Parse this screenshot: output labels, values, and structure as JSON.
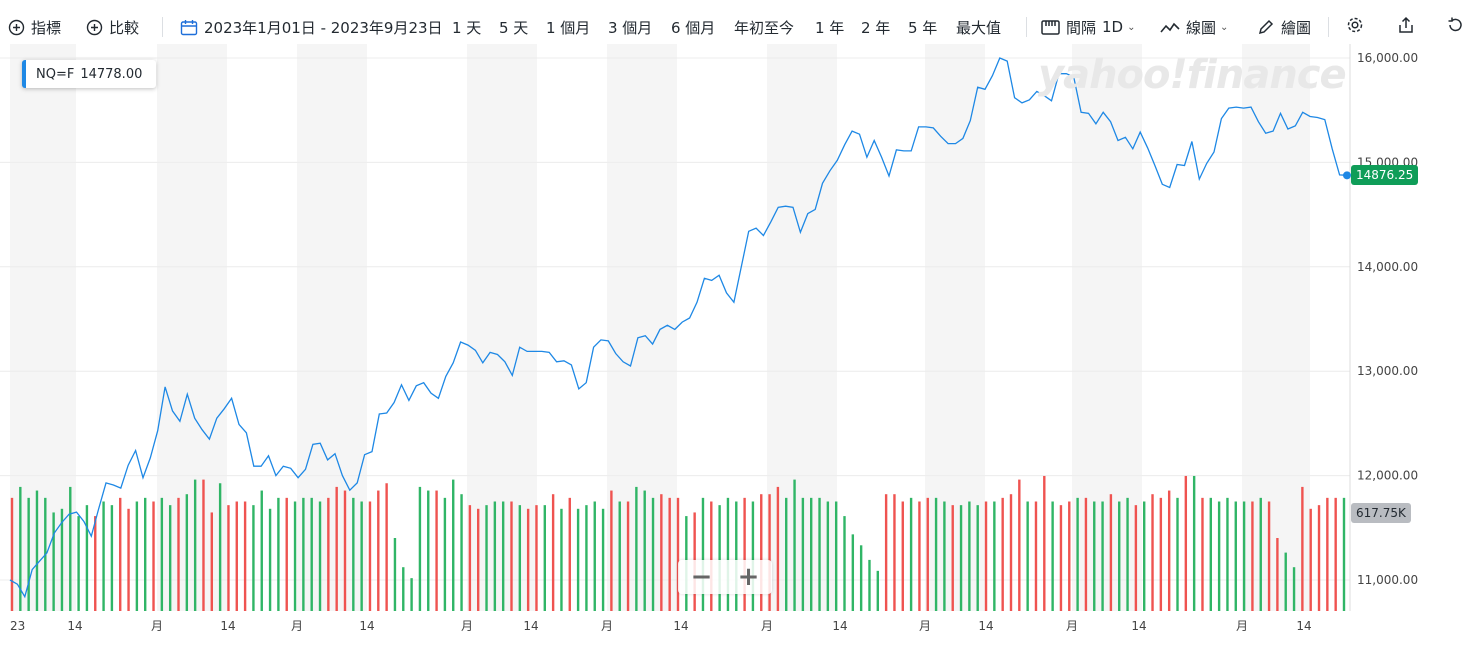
{
  "toolbar": {
    "indicators": "指標",
    "compare": "比較",
    "date_range": "2023年1月01日 - 2023年9月23日",
    "ranges": [
      "1 天",
      "5 天",
      "1 個月",
      "3 個月",
      "6 個月",
      "年初至今",
      "1 年",
      "2 年",
      "5 年",
      "最大值"
    ],
    "interval_label": "間隔",
    "interval_value": "1D",
    "chart_type": "線圖",
    "draw": "繪圖"
  },
  "legend": {
    "symbol": "NQ=F",
    "value": "14778.00"
  },
  "watermark": "yahoo!finance",
  "badges": {
    "price": "14876.25",
    "volume": "617.75K"
  },
  "colors": {
    "line": "#1e88e5",
    "up": "#30b566",
    "down": "#ef5350",
    "price_badge": "#0f9d58",
    "volume_badge": "#b9bcc1"
  },
  "chart_data": {
    "type": "line",
    "yticks": [
      "16,000.00",
      "15,000.00",
      "14,000.00",
      "13,000.00",
      "12,000.00",
      "11,000.00"
    ],
    "ylim": [
      10700,
      16050
    ],
    "xticks": [
      "23",
      "14",
      "月",
      "14",
      "月",
      "14",
      "月",
      "14",
      "月",
      "14",
      "月",
      "14",
      "月",
      "14",
      "月",
      "14",
      "月",
      "14"
    ],
    "series": [
      {
        "values": [
          11000,
          10960,
          10840,
          11100,
          11180,
          11260,
          11450,
          11550,
          11630,
          11650,
          11560,
          11420,
          11680,
          11930,
          11910,
          11880,
          12100,
          12240,
          11980,
          12170,
          12430,
          12850,
          12620,
          12520,
          12780,
          12550,
          12440,
          12350,
          12550,
          12640,
          12740,
          12490,
          12410,
          12090,
          12090,
          12190,
          12000,
          12090,
          12070,
          11980,
          12060,
          12300,
          12310,
          12150,
          12210,
          12000,
          11860,
          11930,
          12200,
          12230,
          12590,
          12600,
          12700,
          12870,
          12720,
          12860,
          12890,
          12790,
          12740,
          12950,
          13080,
          13280,
          13250,
          13200,
          13080,
          13180,
          13160,
          13090,
          12960,
          13230,
          13190,
          13190,
          13190,
          13180,
          13090,
          13100,
          13060,
          12830,
          12890,
          13230,
          13300,
          13290,
          13170,
          13090,
          13050,
          13320,
          13340,
          13260,
          13400,
          13440,
          13400,
          13470,
          13510,
          13660,
          13890,
          13870,
          13920,
          13750,
          13660,
          14000,
          14340,
          14370,
          14300,
          14430,
          14570,
          14580,
          14570,
          14330,
          14510,
          14550,
          14800,
          14920,
          15020,
          15170,
          15300,
          15270,
          15050,
          15210,
          15050,
          14870,
          15120,
          15110,
          15110,
          15340,
          15340,
          15330,
          15250,
          15180,
          15180,
          15230,
          15400,
          15720,
          15700,
          15830,
          16000,
          15970,
          15620,
          15570,
          15600,
          15680,
          15640,
          15590,
          15850,
          15850,
          15820,
          15480,
          15470,
          15370,
          15480,
          15390,
          15210,
          15240,
          15130,
          15290,
          15140,
          14970,
          14790,
          14760,
          14980,
          14970,
          15200,
          14840,
          14990,
          15100,
          15420,
          15520,
          15530,
          15520,
          15530,
          15390,
          15280,
          15300,
          15470,
          15320,
          15350,
          15480,
          15440,
          15430,
          15410,
          15130,
          14880,
          14876.25
        ]
      }
    ],
    "volumes": [
      {
        "v": 1.55,
        "up": false
      },
      {
        "v": 1.7,
        "up": true
      },
      {
        "v": 1.55,
        "up": true
      },
      {
        "v": 1.65,
        "up": true
      },
      {
        "v": 1.55,
        "up": true
      },
      {
        "v": 1.35,
        "up": true
      },
      {
        "v": 1.4,
        "up": true
      },
      {
        "v": 1.7,
        "up": true
      },
      {
        "v": 1.3,
        "up": true
      },
      {
        "v": 1.45,
        "up": true
      },
      {
        "v": 1.3,
        "up": false
      },
      {
        "v": 1.5,
        "up": true
      },
      {
        "v": 1.45,
        "up": true
      },
      {
        "v": 1.55,
        "up": false
      },
      {
        "v": 1.4,
        "up": false
      },
      {
        "v": 1.5,
        "up": true
      },
      {
        "v": 1.55,
        "up": true
      },
      {
        "v": 1.5,
        "up": false
      },
      {
        "v": 1.55,
        "up": true
      },
      {
        "v": 1.45,
        "up": true
      },
      {
        "v": 1.55,
        "up": false
      },
      {
        "v": 1.6,
        "up": true
      },
      {
        "v": 1.8,
        "up": true
      },
      {
        "v": 1.8,
        "up": false
      },
      {
        "v": 1.35,
        "up": false
      },
      {
        "v": 1.75,
        "up": true
      },
      {
        "v": 1.45,
        "up": false
      },
      {
        "v": 1.5,
        "up": false
      },
      {
        "v": 1.5,
        "up": false
      },
      {
        "v": 1.45,
        "up": true
      },
      {
        "v": 1.65,
        "up": true
      },
      {
        "v": 1.4,
        "up": true
      },
      {
        "v": 1.55,
        "up": true
      },
      {
        "v": 1.55,
        "up": false
      },
      {
        "v": 1.5,
        "up": true
      },
      {
        "v": 1.55,
        "up": true
      },
      {
        "v": 1.55,
        "up": true
      },
      {
        "v": 1.5,
        "up": true
      },
      {
        "v": 1.55,
        "up": false
      },
      {
        "v": 1.7,
        "up": false
      },
      {
        "v": 1.65,
        "up": false
      },
      {
        "v": 1.55,
        "up": true
      },
      {
        "v": 1.5,
        "up": true
      },
      {
        "v": 1.5,
        "up": false
      },
      {
        "v": 1.65,
        "up": false
      },
      {
        "v": 1.75,
        "up": false
      },
      {
        "v": 1.0,
        "up": true
      },
      {
        "v": 0.6,
        "up": true
      },
      {
        "v": 0.45,
        "up": true
      },
      {
        "v": 1.7,
        "up": true
      },
      {
        "v": 1.65,
        "up": true
      },
      {
        "v": 1.65,
        "up": false
      },
      {
        "v": 1.55,
        "up": true
      },
      {
        "v": 1.8,
        "up": true
      },
      {
        "v": 1.6,
        "up": true
      },
      {
        "v": 1.45,
        "up": false
      },
      {
        "v": 1.4,
        "up": false
      },
      {
        "v": 1.45,
        "up": true
      },
      {
        "v": 1.5,
        "up": true
      },
      {
        "v": 1.5,
        "up": true
      },
      {
        "v": 1.5,
        "up": false
      },
      {
        "v": 1.45,
        "up": true
      },
      {
        "v": 1.4,
        "up": false
      },
      {
        "v": 1.45,
        "up": false
      },
      {
        "v": 1.45,
        "up": true
      },
      {
        "v": 1.6,
        "up": false
      },
      {
        "v": 1.4,
        "up": true
      },
      {
        "v": 1.55,
        "up": false
      },
      {
        "v": 1.4,
        "up": true
      },
      {
        "v": 1.45,
        "up": true
      },
      {
        "v": 1.5,
        "up": true
      },
      {
        "v": 1.4,
        "up": true
      },
      {
        "v": 1.65,
        "up": false
      },
      {
        "v": 1.5,
        "up": true
      },
      {
        "v": 1.5,
        "up": false
      },
      {
        "v": 1.7,
        "up": true
      },
      {
        "v": 1.65,
        "up": true
      },
      {
        "v": 1.55,
        "up": true
      },
      {
        "v": 1.6,
        "up": false
      },
      {
        "v": 1.55,
        "up": false
      },
      {
        "v": 1.55,
        "up": false
      },
      {
        "v": 1.3,
        "up": true
      },
      {
        "v": 1.35,
        "up": false
      },
      {
        "v": 1.55,
        "up": true
      },
      {
        "v": 1.5,
        "up": false
      },
      {
        "v": 1.45,
        "up": true
      },
      {
        "v": 1.55,
        "up": true
      },
      {
        "v": 1.5,
        "up": true
      },
      {
        "v": 1.55,
        "up": false
      },
      {
        "v": 1.5,
        "up": true
      },
      {
        "v": 1.6,
        "up": false
      },
      {
        "v": 1.6,
        "up": false
      },
      {
        "v": 1.7,
        "up": false
      },
      {
        "v": 1.55,
        "up": true
      },
      {
        "v": 1.8,
        "up": true
      },
      {
        "v": 1.55,
        "up": true
      },
      {
        "v": 1.55,
        "up": true
      },
      {
        "v": 1.55,
        "up": true
      },
      {
        "v": 1.5,
        "up": true
      },
      {
        "v": 1.5,
        "up": true
      },
      {
        "v": 1.3,
        "up": true
      },
      {
        "v": 1.05,
        "up": true
      },
      {
        "v": 0.9,
        "up": true
      },
      {
        "v": 0.7,
        "up": true
      },
      {
        "v": 0.55,
        "up": true
      },
      {
        "v": 1.6,
        "up": false
      },
      {
        "v": 1.6,
        "up": false
      },
      {
        "v": 1.5,
        "up": false
      },
      {
        "v": 1.55,
        "up": true
      },
      {
        "v": 1.5,
        "up": false
      },
      {
        "v": 1.55,
        "up": false
      },
      {
        "v": 1.55,
        "up": true
      },
      {
        "v": 1.5,
        "up": true
      },
      {
        "v": 1.45,
        "up": false
      },
      {
        "v": 1.45,
        "up": true
      },
      {
        "v": 1.5,
        "up": true
      },
      {
        "v": 1.45,
        "up": true
      },
      {
        "v": 1.5,
        "up": false
      },
      {
        "v": 1.5,
        "up": true
      },
      {
        "v": 1.55,
        "up": false
      },
      {
        "v": 1.6,
        "up": false
      },
      {
        "v": 1.8,
        "up": false
      },
      {
        "v": 1.5,
        "up": true
      },
      {
        "v": 1.5,
        "up": false
      },
      {
        "v": 1.85,
        "up": false
      },
      {
        "v": 1.5,
        "up": true
      },
      {
        "v": 1.45,
        "up": false
      },
      {
        "v": 1.5,
        "up": false
      },
      {
        "v": 1.55,
        "up": true
      },
      {
        "v": 1.55,
        "up": false
      },
      {
        "v": 1.5,
        "up": true
      },
      {
        "v": 1.5,
        "up": true
      },
      {
        "v": 1.6,
        "up": false
      },
      {
        "v": 1.5,
        "up": true
      },
      {
        "v": 1.55,
        "up": true
      },
      {
        "v": 1.45,
        "up": false
      },
      {
        "v": 1.5,
        "up": true
      },
      {
        "v": 1.6,
        "up": false
      },
      {
        "v": 1.55,
        "up": false
      },
      {
        "v": 1.65,
        "up": false
      },
      {
        "v": 1.55,
        "up": true
      },
      {
        "v": 1.85,
        "up": false
      },
      {
        "v": 1.85,
        "up": true
      },
      {
        "v": 1.55,
        "up": false
      },
      {
        "v": 1.55,
        "up": true
      },
      {
        "v": 1.5,
        "up": true
      },
      {
        "v": 1.55,
        "up": true
      },
      {
        "v": 1.5,
        "up": true
      },
      {
        "v": 1.5,
        "up": true
      },
      {
        "v": 1.5,
        "up": false
      },
      {
        "v": 1.55,
        "up": true
      },
      {
        "v": 1.5,
        "up": false
      },
      {
        "v": 1.0,
        "up": false
      },
      {
        "v": 0.8,
        "up": true
      },
      {
        "v": 0.6,
        "up": true
      },
      {
        "v": 1.7,
        "up": false
      },
      {
        "v": 1.4,
        "up": false
      },
      {
        "v": 1.45,
        "up": false
      },
      {
        "v": 1.55,
        "up": false
      },
      {
        "v": 1.55,
        "up": false
      },
      {
        "v": 1.55,
        "up": true
      }
    ]
  }
}
